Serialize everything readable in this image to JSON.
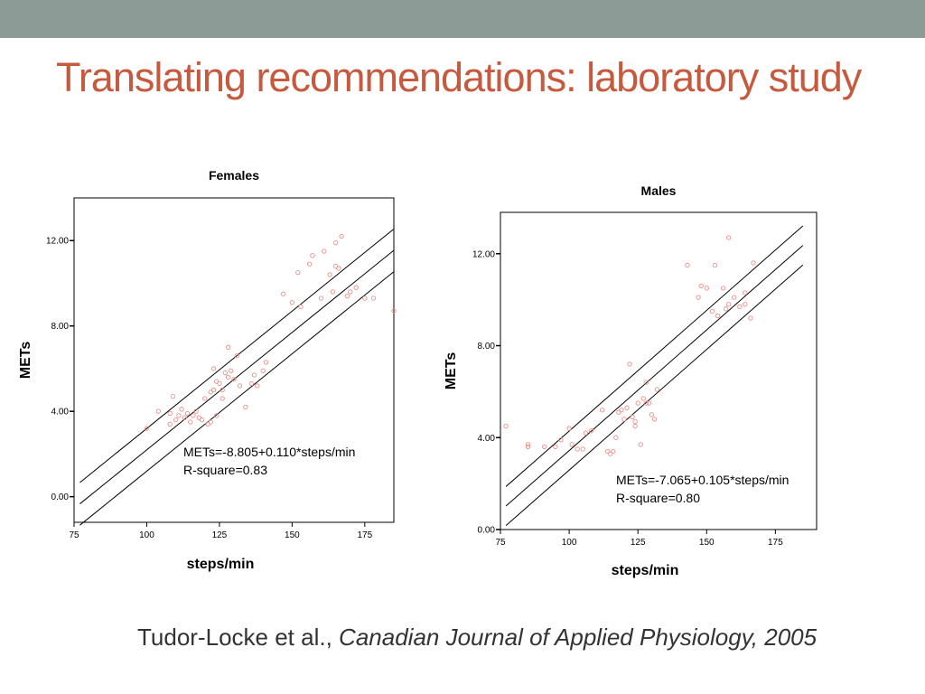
{
  "slide": {
    "title": "Translating recommendations: laboratory study",
    "citation_author": "Tudor-Locke et al.,",
    "citation_journal": "Canadian Journal of Applied Physiology, 2005"
  },
  "colors": {
    "top_band": "#8d9b96",
    "title": "#c65a3f",
    "point": "#e8908a",
    "line": "#000000"
  },
  "chart_data": [
    {
      "type": "scatter",
      "title": "Females",
      "xlabel": "steps/min",
      "ylabel": "METs",
      "xlim": [
        75,
        185
      ],
      "ylim": [
        -1.2,
        14.0
      ],
      "xticks": [
        75,
        100,
        125,
        150,
        175
      ],
      "yticks": [
        0,
        4,
        8,
        12
      ],
      "ytick_labels": [
        "0.00",
        "4.00",
        "8.00",
        "12.00"
      ],
      "annotation": [
        "METs=-8.805+0.110*steps/min",
        "R-square=0.83"
      ],
      "regression": {
        "intercept": -8.805,
        "slope": 0.11,
        "x_range": [
          77,
          185
        ],
        "band_width": 1.0
      },
      "points": [
        [
          100,
          3.2
        ],
        [
          104,
          4.0
        ],
        [
          108,
          3.4
        ],
        [
          108,
          3.9
        ],
        [
          109,
          4.7
        ],
        [
          110,
          3.6
        ],
        [
          111,
          3.8
        ],
        [
          112,
          4.1
        ],
        [
          113,
          3.7
        ],
        [
          114,
          3.9
        ],
        [
          115,
          3.5
        ],
        [
          116,
          3.8
        ],
        [
          117,
          4.0
        ],
        [
          118,
          3.7
        ],
        [
          119,
          3.6
        ],
        [
          120,
          4.6
        ],
        [
          121,
          3.4
        ],
        [
          122,
          3.5
        ],
        [
          122,
          4.9
        ],
        [
          123,
          5.0
        ],
        [
          123,
          6.0
        ],
        [
          124,
          3.8
        ],
        [
          124,
          5.4
        ],
        [
          125,
          5.3
        ],
        [
          126,
          4.6
        ],
        [
          126,
          5.0
        ],
        [
          127,
          5.8
        ],
        [
          128,
          7.0
        ],
        [
          128,
          5.6
        ],
        [
          129,
          5.9
        ],
        [
          130,
          5.5
        ],
        [
          131,
          6.6
        ],
        [
          132,
          5.2
        ],
        [
          134,
          4.2
        ],
        [
          136,
          5.3
        ],
        [
          137,
          5.7
        ],
        [
          138,
          5.2
        ],
        [
          140,
          5.9
        ],
        [
          141,
          6.3
        ],
        [
          147,
          9.5
        ],
        [
          150,
          9.1
        ],
        [
          152,
          10.5
        ],
        [
          153,
          8.9
        ],
        [
          156,
          10.9
        ],
        [
          157,
          11.3
        ],
        [
          160,
          9.3
        ],
        [
          161,
          11.5
        ],
        [
          163,
          10.4
        ],
        [
          164,
          9.6
        ],
        [
          165,
          11.9
        ],
        [
          165,
          10.8
        ],
        [
          166,
          10.7
        ],
        [
          167,
          12.2
        ],
        [
          169,
          9.4
        ],
        [
          170,
          9.6
        ],
        [
          172,
          9.8
        ],
        [
          175,
          9.3
        ],
        [
          178,
          9.3
        ],
        [
          185,
          8.7
        ]
      ]
    },
    {
      "type": "scatter",
      "title": "Males",
      "xlabel": "steps/min",
      "ylabel": "METs",
      "xlim": [
        75,
        190
      ],
      "ylim": [
        0,
        13.8
      ],
      "xticks": [
        75,
        100,
        125,
        150,
        175
      ],
      "yticks": [
        0,
        4,
        8,
        12
      ],
      "ytick_labels": [
        "0.00",
        "4.00",
        "8.00",
        "12.00"
      ],
      "annotation": [
        "METs=-7.065+0.105*steps/min",
        "R-square=0.80"
      ],
      "regression": {
        "intercept": -7.065,
        "slope": 0.105,
        "x_range": [
          77,
          185
        ],
        "band_width": 0.85
      },
      "points": [
        [
          77,
          4.5
        ],
        [
          85,
          3.7
        ],
        [
          85,
          3.6
        ],
        [
          91,
          3.6
        ],
        [
          95,
          3.6
        ],
        [
          97,
          3.9
        ],
        [
          100,
          4.4
        ],
        [
          101,
          3.7
        ],
        [
          103,
          3.5
        ],
        [
          105,
          3.5
        ],
        [
          106,
          4.2
        ],
        [
          108,
          4.3
        ],
        [
          112,
          5.2
        ],
        [
          114,
          3.4
        ],
        [
          115,
          3.3
        ],
        [
          116,
          3.4
        ],
        [
          117,
          4.0
        ],
        [
          118,
          5.1
        ],
        [
          119,
          5.2
        ],
        [
          120,
          4.8
        ],
        [
          121,
          5.3
        ],
        [
          122,
          7.2
        ],
        [
          123,
          4.9
        ],
        [
          124,
          4.5
        ],
        [
          124,
          4.7
        ],
        [
          125,
          5.5
        ],
        [
          126,
          3.7
        ],
        [
          127,
          5.7
        ],
        [
          128,
          6.4
        ],
        [
          128,
          5.5
        ],
        [
          129,
          5.5
        ],
        [
          130,
          5.0
        ],
        [
          131,
          4.8
        ],
        [
          132,
          6.1
        ],
        [
          143,
          11.5
        ],
        [
          147,
          10.1
        ],
        [
          148,
          10.6
        ],
        [
          150,
          10.5
        ],
        [
          152,
          9.5
        ],
        [
          153,
          11.5
        ],
        [
          154,
          9.3
        ],
        [
          156,
          10.5
        ],
        [
          157,
          9.6
        ],
        [
          158,
          9.8
        ],
        [
          158,
          12.7
        ],
        [
          160,
          10.1
        ],
        [
          162,
          9.7
        ],
        [
          164,
          10.3
        ],
        [
          164,
          9.8
        ],
        [
          166,
          9.2
        ],
        [
          167,
          11.6
        ]
      ]
    }
  ]
}
